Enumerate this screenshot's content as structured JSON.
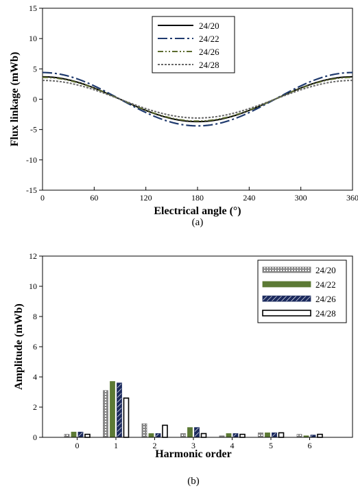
{
  "chart_data": [
    {
      "type": "line",
      "caption": "(a)",
      "xlabel": "Electrical angle (°)",
      "ylabel": "Flux linkage (mWb)",
      "xlim": [
        0,
        360
      ],
      "ylim": [
        -15,
        15
      ],
      "xticks": [
        0,
        60,
        120,
        180,
        240,
        300,
        360
      ],
      "yticks": [
        -15,
        -10,
        -5,
        0,
        5,
        10,
        15
      ],
      "legend_position": "top-center",
      "series": [
        {
          "name": "24/20",
          "color": "#000000",
          "style": "solid",
          "amplitude": 3.7,
          "phase_deg": 0
        },
        {
          "name": "24/22",
          "color": "#1f3a6e",
          "style": "dashdot",
          "amplitude": 4.4,
          "phase_deg": 0
        },
        {
          "name": "24/26",
          "color": "#5c6b2e",
          "style": "dashdotdot",
          "amplitude": 3.6,
          "phase_deg": 0
        },
        {
          "name": "24/28",
          "color": "#666666",
          "style": "dotted",
          "amplitude": 3.1,
          "phase_deg": 0
        }
      ],
      "x": [
        0,
        15,
        30,
        45,
        60,
        75,
        90,
        105,
        120,
        135,
        150,
        165,
        180,
        195,
        210,
        225,
        240,
        255,
        270,
        285,
        300,
        315,
        330,
        345,
        360
      ]
    },
    {
      "type": "bar",
      "caption": "(b)",
      "xlabel": "Harmonic order",
      "ylabel": "Amplitude (mWb)",
      "ylim": [
        0,
        12
      ],
      "yticks": [
        0,
        2,
        4,
        6,
        8,
        10,
        12
      ],
      "categories": [
        "0",
        "1",
        "2",
        "3",
        "4",
        "5",
        "6"
      ],
      "legend_position": "top-right",
      "series": [
        {
          "name": "24/20",
          "color": "#777777",
          "pattern": "dotted",
          "values": [
            0.2,
            3.1,
            0.9,
            0.25,
            0.1,
            0.3,
            0.2
          ]
        },
        {
          "name": "24/22",
          "color": "#5c7a35",
          "pattern": "solid",
          "values": [
            0.35,
            3.7,
            0.25,
            0.65,
            0.25,
            0.3,
            0.1
          ]
        },
        {
          "name": "24/26",
          "color": "#1b2a5e",
          "pattern": "hatched",
          "values": [
            0.35,
            3.6,
            0.25,
            0.65,
            0.25,
            0.3,
            0.15
          ]
        },
        {
          "name": "24/28",
          "color": "#ffffff",
          "pattern": "outline",
          "values": [
            0.2,
            2.6,
            0.8,
            0.25,
            0.2,
            0.3,
            0.2
          ]
        }
      ]
    }
  ]
}
